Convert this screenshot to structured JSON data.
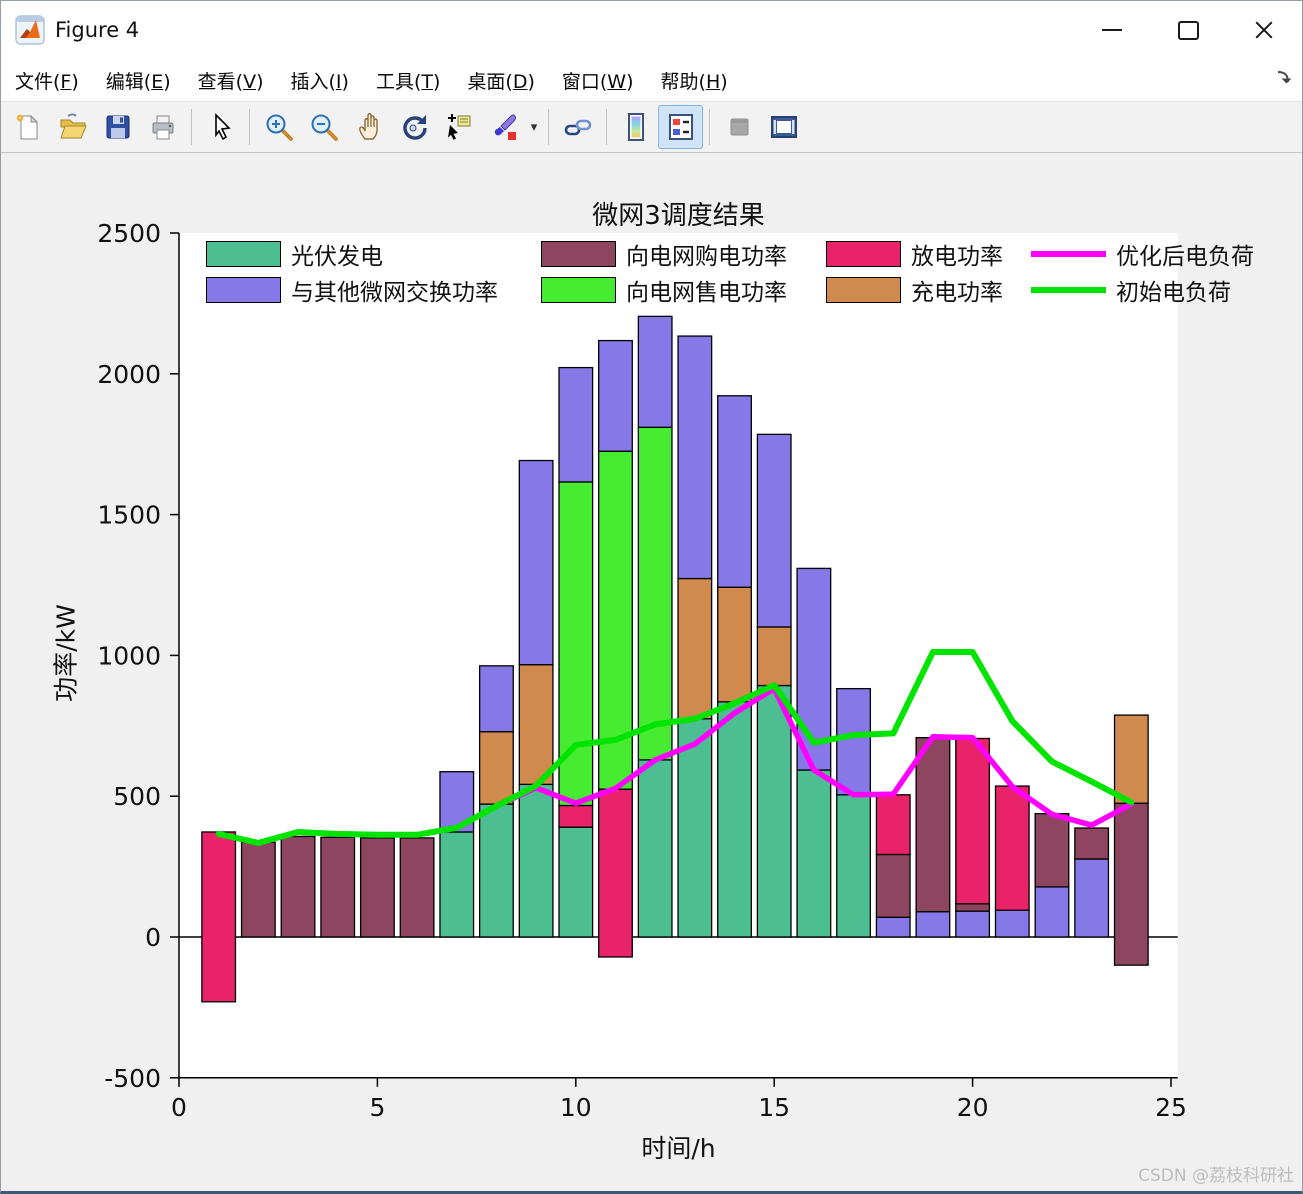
{
  "window": {
    "title": "Figure 4"
  },
  "menu": {
    "items": [
      {
        "label": "文件",
        "key": "F"
      },
      {
        "label": "编辑",
        "key": "E"
      },
      {
        "label": "查看",
        "key": "V"
      },
      {
        "label": "插入",
        "key": "I"
      },
      {
        "label": "工具",
        "key": "T"
      },
      {
        "label": "桌面",
        "key": "D"
      },
      {
        "label": "窗口",
        "key": "W"
      },
      {
        "label": "帮助",
        "key": "H"
      }
    ]
  },
  "toolbar": {
    "active": "insert-legend"
  },
  "watermark": "CSDN @荔枝科研社",
  "chart_data": {
    "type": "bar",
    "subtype": "stacked-bars-with-lines",
    "title": "微网3调度结果",
    "xlabel": "时间/h",
    "ylabel": "功率/kW",
    "xlim": [
      0,
      25
    ],
    "ylim": [
      -500,
      2500
    ],
    "xticks": [
      0,
      5,
      10,
      15,
      20,
      25
    ],
    "yticks": [
      -500,
      0,
      500,
      1000,
      1500,
      2000,
      2500
    ],
    "grid": false,
    "legend_position": "top-inside-two-rows",
    "colors": {
      "pv": "#4DBE91",
      "exchange": "#8678E6",
      "buy": "#8E4660",
      "sell": "#46EB32",
      "discharge": "#E82369",
      "charge": "#D18A4D",
      "optimized_load": "#FF00FF",
      "initial_load": "#00E400"
    },
    "legend": [
      {
        "series": "pv",
        "label": "光伏发电",
        "swatch": "box"
      },
      {
        "series": "buy",
        "label": "向电网购电功率",
        "swatch": "box"
      },
      {
        "series": "discharge",
        "label": "放电功率",
        "swatch": "box"
      },
      {
        "series": "optimized_load",
        "label": "优化后电负荷",
        "swatch": "line"
      },
      {
        "series": "exchange",
        "label": "与其他微网交换功率",
        "swatch": "box"
      },
      {
        "series": "sell",
        "label": "向电网售电功率",
        "swatch": "box"
      },
      {
        "series": "charge",
        "label": "充电功率",
        "swatch": "box"
      },
      {
        "series": "initial_load",
        "label": "初始电负荷",
        "swatch": "line"
      }
    ],
    "hours": [
      1,
      2,
      3,
      4,
      5,
      6,
      7,
      8,
      9,
      10,
      11,
      12,
      13,
      14,
      15,
      16,
      17,
      18,
      19,
      20,
      21,
      22,
      23,
      24
    ],
    "bars": [
      [
        {
          "s": "discharge",
          "a": -230,
          "b": 373
        }
      ],
      [
        {
          "s": "buy",
          "a": 0,
          "b": 336
        }
      ],
      [
        {
          "s": "buy",
          "a": 0,
          "b": 357
        }
      ],
      [
        {
          "s": "buy",
          "a": 0,
          "b": 354
        }
      ],
      [
        {
          "s": "buy",
          "a": 0,
          "b": 352
        }
      ],
      [
        {
          "s": "buy",
          "a": 0,
          "b": 352
        }
      ],
      [
        {
          "s": "pv",
          "a": 0,
          "b": 373
        },
        {
          "s": "exchange",
          "a": 373,
          "b": 587
        }
      ],
      [
        {
          "s": "pv",
          "a": 0,
          "b": 472
        },
        {
          "s": "charge",
          "a": 472,
          "b": 729
        },
        {
          "s": "exchange",
          "a": 729,
          "b": 963
        }
      ],
      [
        {
          "s": "pv",
          "a": 0,
          "b": 542
        },
        {
          "s": "charge",
          "a": 542,
          "b": 967
        },
        {
          "s": "exchange",
          "a": 967,
          "b": 1692
        }
      ],
      [
        {
          "s": "pv",
          "a": 0,
          "b": 390
        },
        {
          "s": "discharge",
          "a": 390,
          "b": 467
        },
        {
          "s": "sell",
          "a": 467,
          "b": 1616
        },
        {
          "s": "exchange",
          "a": 1616,
          "b": 2022
        }
      ],
      [
        {
          "s": "discharge",
          "a": -71,
          "b": 525
        },
        {
          "s": "sell",
          "a": 525,
          "b": 1725
        },
        {
          "s": "exchange",
          "a": 1725,
          "b": 2118
        }
      ],
      [
        {
          "s": "pv",
          "a": 0,
          "b": 629
        },
        {
          "s": "sell",
          "a": 629,
          "b": 1810
        },
        {
          "s": "exchange",
          "a": 1810,
          "b": 2204
        }
      ],
      [
        {
          "s": "pv",
          "a": 0,
          "b": 775
        },
        {
          "s": "charge",
          "a": 775,
          "b": 1273
        },
        {
          "s": "exchange",
          "a": 1273,
          "b": 2134
        }
      ],
      [
        {
          "s": "pv",
          "a": 0,
          "b": 835
        },
        {
          "s": "charge",
          "a": 835,
          "b": 1242
        },
        {
          "s": "exchange",
          "a": 1242,
          "b": 1922
        }
      ],
      [
        {
          "s": "pv",
          "a": 0,
          "b": 893
        },
        {
          "s": "charge",
          "a": 893,
          "b": 1101
        },
        {
          "s": "exchange",
          "a": 1101,
          "b": 1785
        }
      ],
      [
        {
          "s": "pv",
          "a": 0,
          "b": 593
        },
        {
          "s": "exchange",
          "a": 593,
          "b": 1309
        }
      ],
      [
        {
          "s": "pv",
          "a": 0,
          "b": 505
        },
        {
          "s": "exchange",
          "a": 505,
          "b": 882
        }
      ],
      [
        {
          "s": "exchange",
          "a": 0,
          "b": 70
        },
        {
          "s": "buy",
          "a": 70,
          "b": 293
        },
        {
          "s": "discharge",
          "a": 293,
          "b": 505
        }
      ],
      [
        {
          "s": "exchange",
          "a": 0,
          "b": 90
        },
        {
          "s": "buy",
          "a": 90,
          "b": 708
        }
      ],
      [
        {
          "s": "exchange",
          "a": 0,
          "b": 92
        },
        {
          "s": "buy",
          "a": 92,
          "b": 118
        },
        {
          "s": "discharge",
          "a": 118,
          "b": 705
        }
      ],
      [
        {
          "s": "exchange",
          "a": 0,
          "b": 95
        },
        {
          "s": "discharge",
          "a": 95,
          "b": 536
        }
      ],
      [
        {
          "s": "exchange",
          "a": 0,
          "b": 178
        },
        {
          "s": "buy",
          "a": 178,
          "b": 438
        }
      ],
      [
        {
          "s": "exchange",
          "a": 0,
          "b": 277
        },
        {
          "s": "buy",
          "a": 277,
          "b": 387
        }
      ],
      [
        {
          "s": "buy",
          "a": -100,
          "b": 475
        },
        {
          "s": "charge",
          "a": 475,
          "b": 788
        }
      ]
    ],
    "lines": [
      {
        "series": "optimized_load",
        "label": "优化后电负荷",
        "values": [
          366,
          334,
          373,
          366,
          363,
          363,
          388,
          465,
          530,
          475,
          528,
          629,
          685,
          795,
          882,
          593,
          505,
          507,
          711,
          708,
          534,
          436,
          397,
          472
        ]
      },
      {
        "series": "initial_load",
        "label": "初始电负荷",
        "values": [
          366,
          334,
          373,
          366,
          363,
          363,
          388,
          465,
          537,
          682,
          700,
          755,
          775,
          830,
          894,
          690,
          717,
          723,
          1012,
          1012,
          767,
          623,
          552,
          478
        ]
      }
    ]
  }
}
